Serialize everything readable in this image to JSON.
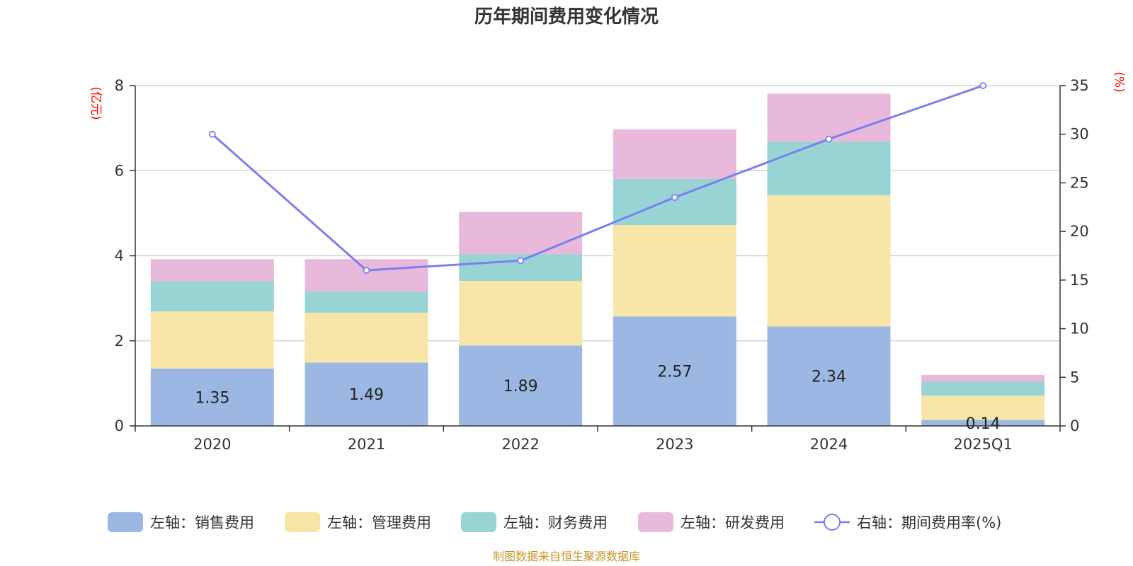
{
  "chart_data": {
    "type": "bar",
    "title": "历年期间费用变化情况",
    "categories": [
      "2020",
      "2021",
      "2022",
      "2023",
      "2024",
      "2025Q1"
    ],
    "left_axis": {
      "unit": "(亿元)",
      "min": 0,
      "max": 8,
      "ticks": [
        "0",
        "2",
        "4",
        "6",
        "8"
      ]
    },
    "right_axis": {
      "unit": "(%)",
      "min": 0,
      "max": 35,
      "ticks": [
        "0",
        "5",
        "10",
        "15",
        "20",
        "25",
        "30",
        "35"
      ]
    },
    "series": [
      {
        "name": "左轴：销售费用",
        "axis": "left",
        "kind": "bar",
        "color": "#9cb8e2",
        "values": [
          1.35,
          1.49,
          1.89,
          2.57,
          2.34,
          0.14
        ],
        "labels": [
          "1.35",
          "1.49",
          "1.89",
          "2.57",
          "2.34",
          "0.14"
        ]
      },
      {
        "name": "左轴：管理费用",
        "axis": "left",
        "kind": "bar",
        "color": "#f8e6a8",
        "values": [
          1.34,
          1.17,
          1.52,
          2.15,
          3.08,
          0.57
        ]
      },
      {
        "name": "左轴：财务费用",
        "axis": "left",
        "kind": "bar",
        "color": "#98d4d4",
        "values": [
          0.71,
          0.5,
          0.63,
          1.09,
          1.26,
          0.33
        ]
      },
      {
        "name": "左轴：研发费用",
        "axis": "left",
        "kind": "bar",
        "color": "#e8b9da",
        "values": [
          0.52,
          0.76,
          0.99,
          1.16,
          1.13,
          0.16
        ]
      },
      {
        "name": "右轴：期间费用率(%)",
        "axis": "right",
        "kind": "line",
        "color": "#7b7ff0",
        "values": [
          30.0,
          16.0,
          17.0,
          23.5,
          29.5,
          35.0
        ]
      }
    ],
    "grid": true,
    "legend_position": "bottom"
  },
  "footer": {
    "source": "制图数据来自恒生聚源数据库"
  }
}
